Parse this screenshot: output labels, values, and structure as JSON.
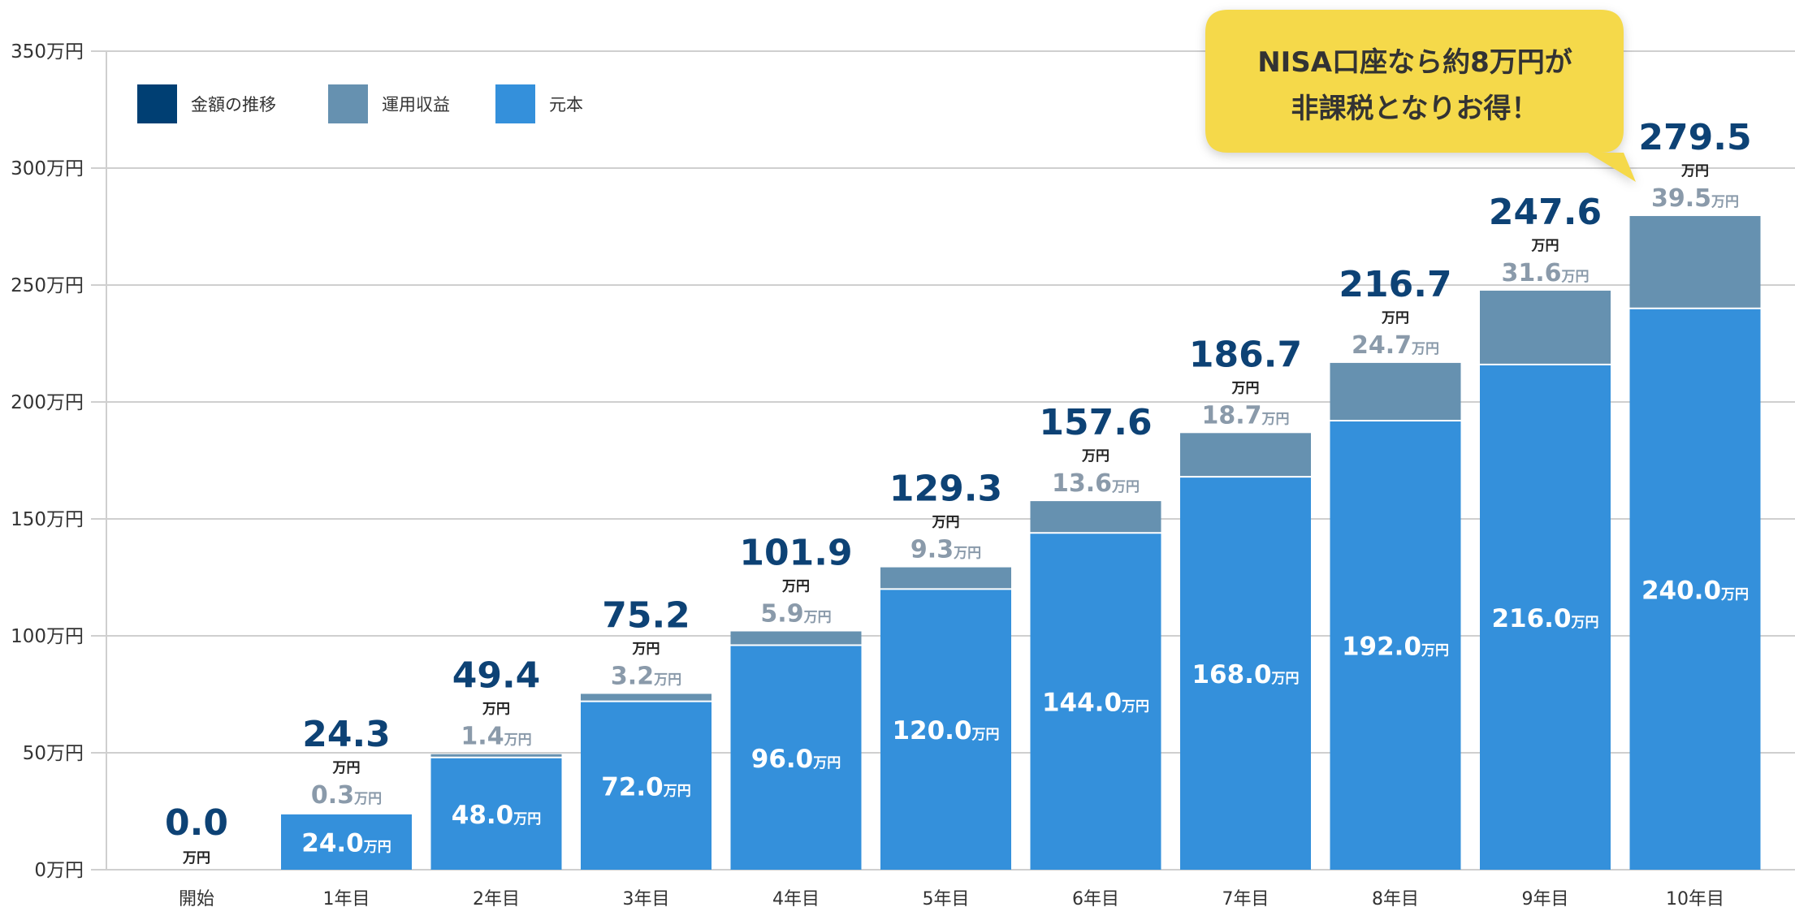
{
  "chart_data": {
    "type": "bar",
    "stacked": true,
    "categories": [
      "開始",
      "1年目",
      "2年目",
      "3年目",
      "4年目",
      "5年目",
      "6年目",
      "7年目",
      "8年目",
      "9年目",
      "10年目"
    ],
    "series": [
      {
        "name": "元本",
        "color": "#3490db",
        "values": [
          0,
          24.0,
          48.0,
          72.0,
          96.0,
          120.0,
          144.0,
          168.0,
          192.0,
          216.0,
          240.0
        ]
      },
      {
        "name": "運用収益",
        "color": "#6691b0",
        "values": [
          0,
          0.3,
          1.4,
          3.2,
          5.9,
          9.3,
          13.6,
          18.7,
          24.7,
          31.6,
          39.5
        ]
      }
    ],
    "totals": {
      "name": "金額の推移",
      "color": "#003f73",
      "values": [
        0.0,
        24.3,
        49.4,
        75.2,
        101.9,
        129.3,
        157.6,
        186.7,
        216.7,
        247.6,
        279.5
      ]
    },
    "unit": "万円",
    "ylim": [
      0,
      350
    ],
    "yticks": [
      0,
      50,
      100,
      150,
      200,
      250,
      300,
      350
    ],
    "ytick_labels": [
      "0万円",
      "50万円",
      "100万円",
      "150万円",
      "200万円",
      "250万円",
      "300万円",
      "350万円"
    ],
    "grid": true,
    "legend_position": "top-left",
    "legend": [
      "金額の推移",
      "運用収益",
      "元本"
    ],
    "annotation": {
      "lines": [
        "NISA口座なら約8万円が",
        "非課税となりお得！"
      ],
      "color": "#f5d94a",
      "points_to": "10年目"
    }
  }
}
